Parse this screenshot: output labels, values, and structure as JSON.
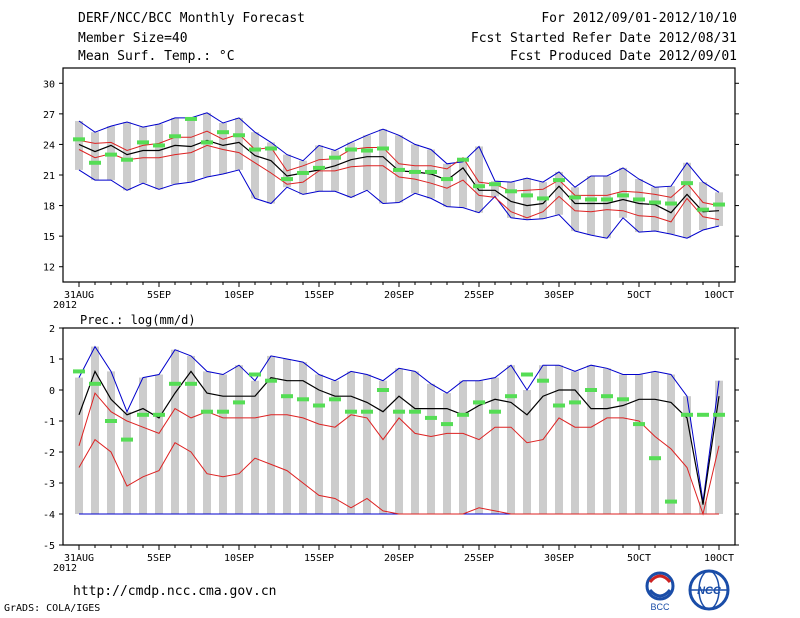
{
  "header": {
    "left": [
      "DERF/NCC/BCC Monthly Forecast",
      "Member Size=40",
      "Mean Surf. Temp.: °C"
    ],
    "right": [
      "For 2012/09/01-2012/10/10",
      "Fcst Started Refer Date 2012/08/31",
      "Fcst Produced Date 2012/09/01"
    ]
  },
  "footer": {
    "url": "http://cmdp.ncc.cma.gov.cn",
    "grads": "GrADS: COLA/IGES",
    "logos": [
      "BCC",
      "NCC"
    ]
  },
  "colors": {
    "envelope": "#0000cc",
    "spread": "#dd2222",
    "mean": "#000000",
    "obs": "#55dd55",
    "box": "#cccccc"
  },
  "chart_data": [
    {
      "type": "box-line",
      "title": "Mean Surf. Temp.: °C",
      "x": [
        0,
        1,
        2,
        3,
        4,
        5,
        6,
        7,
        8,
        9,
        10,
        11,
        12,
        13,
        14,
        15,
        16,
        17,
        18,
        19,
        20,
        21,
        22,
        23,
        24,
        25,
        26,
        27,
        28,
        29,
        30,
        31,
        32,
        33,
        34,
        35,
        36,
        37,
        38,
        39,
        40
      ],
      "x_tick_labels": [
        "31AUG\n2012",
        "5SEP",
        "10SEP",
        "15SEP",
        "20SEP",
        "25SEP",
        "30SEP",
        "5OCT",
        "10OCT"
      ],
      "x_tick_positions": [
        0,
        5,
        10,
        15,
        20,
        25,
        30,
        35,
        40
      ],
      "ylim": [
        10.5,
        31.5
      ],
      "yticks": [
        12,
        15,
        18,
        21,
        24,
        27,
        30
      ],
      "series": [
        {
          "name": "max",
          "values": [
            21.5,
            20.5,
            20.5,
            19.5,
            20.2,
            19.6,
            20.1,
            20.3,
            20.8,
            21.1,
            21.5,
            18.7,
            18.2,
            19.8,
            19.1,
            19.4,
            19.4,
            18.8,
            19.5,
            18.2,
            18.3,
            19.2,
            18.7,
            17.9,
            17.8,
            17.3,
            18.9,
            16.8,
            16.6,
            16.7,
            17.1,
            15.5,
            15.1,
            14.8,
            16.8,
            15.4,
            15.5,
            15.2,
            14.8,
            15.6,
            16.0
          ]
        },
        {
          "name": "min",
          "values": [
            26.3,
            25.2,
            25.8,
            26.2,
            25.7,
            26.0,
            26.6,
            26.6,
            27.1,
            26.1,
            26.6,
            25.2,
            24.2,
            23.0,
            22.4,
            23.9,
            23.4,
            24.2,
            24.9,
            25.5,
            24.9,
            24.0,
            23.5,
            22.1,
            22.3,
            23.8,
            20.4,
            20.3,
            20.7,
            20.3,
            21.3,
            19.8,
            20.9,
            20.9,
            21.7,
            20.6,
            19.8,
            19.9,
            22.2,
            20.3,
            19.3
          ]
        },
        {
          "name": "upper_spread",
          "values": [
            24.4,
            24.1,
            24.2,
            23.4,
            23.9,
            24.1,
            24.7,
            24.7,
            25.3,
            24.5,
            25.0,
            23.5,
            23.7,
            21.4,
            21.9,
            22.5,
            22.6,
            23.5,
            23.7,
            23.7,
            22.1,
            21.9,
            21.9,
            21.6,
            22.7,
            20.3,
            20.1,
            19.4,
            19.5,
            19.6,
            20.5,
            19.0,
            19.0,
            19.0,
            19.4,
            19.3,
            19.1,
            18.8,
            20.2,
            18.3,
            18.0
          ]
        },
        {
          "name": "lower_spread",
          "values": [
            23.5,
            22.7,
            23.1,
            22.5,
            22.7,
            22.7,
            23.0,
            23.2,
            23.9,
            23.5,
            23.2,
            22.2,
            21.2,
            20.1,
            20.3,
            21.4,
            21.4,
            21.8,
            21.9,
            21.9,
            20.8,
            20.6,
            20.2,
            19.7,
            20.5,
            19.0,
            18.8,
            17.4,
            16.8,
            17.4,
            18.9,
            17.5,
            17.4,
            17.6,
            17.5,
            17.0,
            16.9,
            16.4,
            18.7,
            16.9,
            16.6
          ]
        },
        {
          "name": "ensemble_mean",
          "values": [
            24.0,
            23.3,
            23.9,
            23.0,
            23.4,
            23.4,
            23.9,
            23.8,
            24.4,
            23.9,
            24.2,
            22.9,
            22.4,
            20.9,
            21.2,
            21.5,
            21.9,
            22.5,
            22.8,
            22.8,
            21.4,
            21.3,
            21.1,
            20.5,
            21.7,
            19.5,
            19.5,
            18.4,
            18.0,
            18.2,
            19.9,
            18.2,
            18.2,
            18.2,
            18.6,
            18.2,
            18.1,
            17.3,
            19.1,
            17.4,
            17.5
          ]
        },
        {
          "name": "observed",
          "values": [
            24.5,
            22.2,
            23.0,
            22.5,
            24.2,
            23.9,
            24.8,
            26.5,
            24.2,
            25.2,
            24.9,
            23.5,
            23.6,
            20.6,
            21.2,
            21.7,
            22.7,
            23.5,
            23.4,
            23.6,
            21.5,
            21.3,
            21.3,
            20.6,
            22.5,
            19.9,
            20.1,
            19.4,
            19.0,
            18.7,
            20.5,
            18.8,
            18.6,
            18.6,
            19.0,
            18.6,
            18.3,
            18.2,
            20.2,
            17.6,
            18.1
          ]
        }
      ]
    },
    {
      "type": "box-line",
      "title": "Prec.: log(mm/d)",
      "x": [
        0,
        1,
        2,
        3,
        4,
        5,
        6,
        7,
        8,
        9,
        10,
        11,
        12,
        13,
        14,
        15,
        16,
        17,
        18,
        19,
        20,
        21,
        22,
        23,
        24,
        25,
        26,
        27,
        28,
        29,
        30,
        31,
        32,
        33,
        34,
        35,
        36,
        37,
        38,
        39,
        40
      ],
      "x_tick_labels": [
        "31AUG\n2012",
        "5SEP",
        "10SEP",
        "15SEP",
        "20SEP",
        "25SEP",
        "30SEP",
        "5OCT",
        "10OCT"
      ],
      "x_tick_positions": [
        0,
        5,
        10,
        15,
        20,
        25,
        30,
        35,
        40
      ],
      "ylim": [
        -5,
        2
      ],
      "yticks": [
        -5,
        -4,
        -3,
        -2,
        -1,
        0,
        1,
        2
      ],
      "series": [
        {
          "name": "max",
          "values": [
            0.4,
            1.4,
            0.6,
            -0.7,
            0.4,
            0.5,
            1.3,
            1.1,
            0.6,
            0.5,
            0.8,
            0.3,
            1.1,
            1.0,
            0.9,
            0.5,
            0.3,
            0.6,
            0.5,
            0.3,
            0.7,
            0.6,
            0.2,
            -0.1,
            0.3,
            0.3,
            0.4,
            0.8,
            0.0,
            0.8,
            0.8,
            0.6,
            0.8,
            0.7,
            0.5,
            0.5,
            0.6,
            0.5,
            -0.2,
            -3.6,
            0.3
          ]
        },
        {
          "name": "min",
          "values": [
            -4,
            -4,
            -4,
            -4,
            -4,
            -4,
            -4,
            -4,
            -4,
            -4,
            -4,
            -4,
            -4,
            -4,
            -4,
            -4,
            -4,
            -4,
            -4,
            -4,
            -4,
            -4,
            -4,
            -4,
            -4,
            -4,
            -4,
            -4,
            -4,
            -4,
            -4,
            -4,
            -4,
            -4,
            -4,
            -4,
            -4,
            -4,
            -4,
            -4,
            -4
          ]
        },
        {
          "name": "upper_spread",
          "values": [
            -1.8,
            -0.1,
            -0.7,
            -1.0,
            -1.2,
            -1.4,
            -0.6,
            -0.9,
            -0.7,
            -0.9,
            -0.9,
            -0.9,
            -0.8,
            -0.8,
            -0.9,
            -1.1,
            -1.2,
            -0.8,
            -0.9,
            -1.6,
            -0.9,
            -1.4,
            -1.5,
            -1.4,
            -1.4,
            -1.6,
            -1.2,
            -1.2,
            -1.7,
            -1.6,
            -0.9,
            -1.2,
            -1.2,
            -0.9,
            -0.9,
            -1.0,
            -1.5,
            -1.9,
            -2.5,
            -4.0,
            -1.8
          ]
        },
        {
          "name": "lower_spread",
          "values": [
            -2.5,
            -1.6,
            -2.0,
            -3.1,
            -2.8,
            -2.6,
            -1.7,
            -2.0,
            -2.7,
            -2.8,
            -2.7,
            -2.2,
            -2.4,
            -2.6,
            -3.0,
            -3.4,
            -3.5,
            -3.8,
            -3.5,
            -3.9,
            -4,
            -4,
            -4,
            -4,
            -4,
            -3.8,
            -3.9,
            -4,
            -4,
            -4,
            -4,
            -4,
            -4,
            -4,
            -4,
            -4,
            -4,
            -4,
            -4,
            -4,
            -4
          ]
        },
        {
          "name": "ensemble_mean",
          "values": [
            -0.8,
            0.6,
            -0.3,
            -0.8,
            -0.6,
            -0.9,
            -0.1,
            0.6,
            -0.1,
            -0.2,
            -0.2,
            -0.2,
            0.4,
            0.3,
            0.3,
            0.0,
            -0.2,
            -0.2,
            -0.4,
            -0.7,
            -0.2,
            -0.6,
            -0.6,
            -0.6,
            -0.8,
            -0.5,
            -0.3,
            -0.4,
            -0.8,
            -0.2,
            0.0,
            0.0,
            -0.6,
            -0.6,
            -0.5,
            -0.3,
            -0.3,
            -0.4,
            -0.9,
            -3.7,
            -0.2
          ]
        },
        {
          "name": "observed",
          "values": [
            0.6,
            0.2,
            -1.0,
            -1.6,
            -0.8,
            -0.8,
            0.2,
            0.2,
            -0.7,
            -0.7,
            -0.4,
            0.5,
            0.3,
            -0.2,
            -0.3,
            -0.5,
            -0.3,
            -0.7,
            -0.7,
            0.0,
            -0.7,
            -0.7,
            -0.9,
            -1.1,
            -0.8,
            -0.4,
            -0.7,
            -0.2,
            0.5,
            0.3,
            -0.5,
            -0.4,
            0.0,
            -0.2,
            -0.3,
            -1.1,
            -2.2,
            -3.6,
            -0.8,
            -0.8,
            -0.8
          ]
        }
      ]
    }
  ]
}
